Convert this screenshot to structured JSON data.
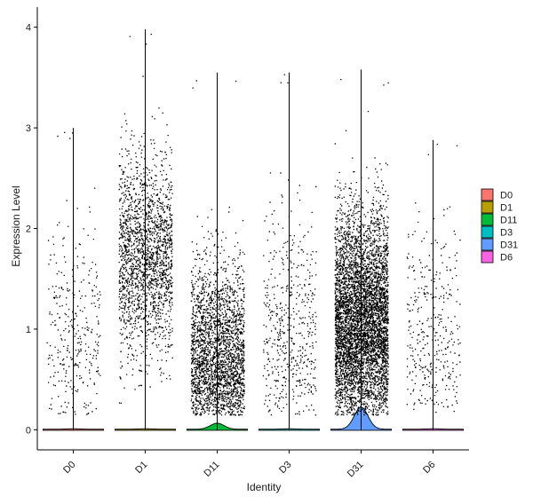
{
  "chart_data": {
    "type": "violin",
    "title": "",
    "xlabel": "Identity",
    "ylabel": "Expression Level",
    "ylim": [
      -0.2,
      4.2
    ],
    "yticks": [
      0,
      1,
      2,
      3,
      4
    ],
    "grid": false,
    "legend_position": "right",
    "categories": [
      "D0",
      "D1",
      "D11",
      "D3",
      "D31",
      "D6"
    ],
    "series": [
      {
        "name": "D0",
        "color": "#F8766D",
        "max": 3.0,
        "n_points": 320,
        "center": 0.95,
        "spread": 0.55,
        "violin_peak": 0.0
      },
      {
        "name": "D1",
        "color": "#B79F00",
        "max": 3.98,
        "n_points": 2000,
        "center": 1.75,
        "spread": 0.5,
        "violin_peak": 0.0
      },
      {
        "name": "D11",
        "color": "#00BA38",
        "max": 3.55,
        "n_points": 2600,
        "center": 0.65,
        "spread": 0.5,
        "violin_peak": 0.06
      },
      {
        "name": "D3",
        "color": "#00BFC4",
        "max": 3.55,
        "n_points": 520,
        "center": 0.9,
        "spread": 0.65,
        "violin_peak": 0.0
      },
      {
        "name": "D31",
        "color": "#619CFF",
        "max": 3.58,
        "n_points": 5500,
        "center": 1.05,
        "spread": 0.55,
        "violin_peak": 0.22
      },
      {
        "name": "D6",
        "color": "#F564E3",
        "max": 2.88,
        "n_points": 360,
        "center": 0.95,
        "spread": 0.55,
        "violin_peak": 0.0
      }
    ]
  }
}
